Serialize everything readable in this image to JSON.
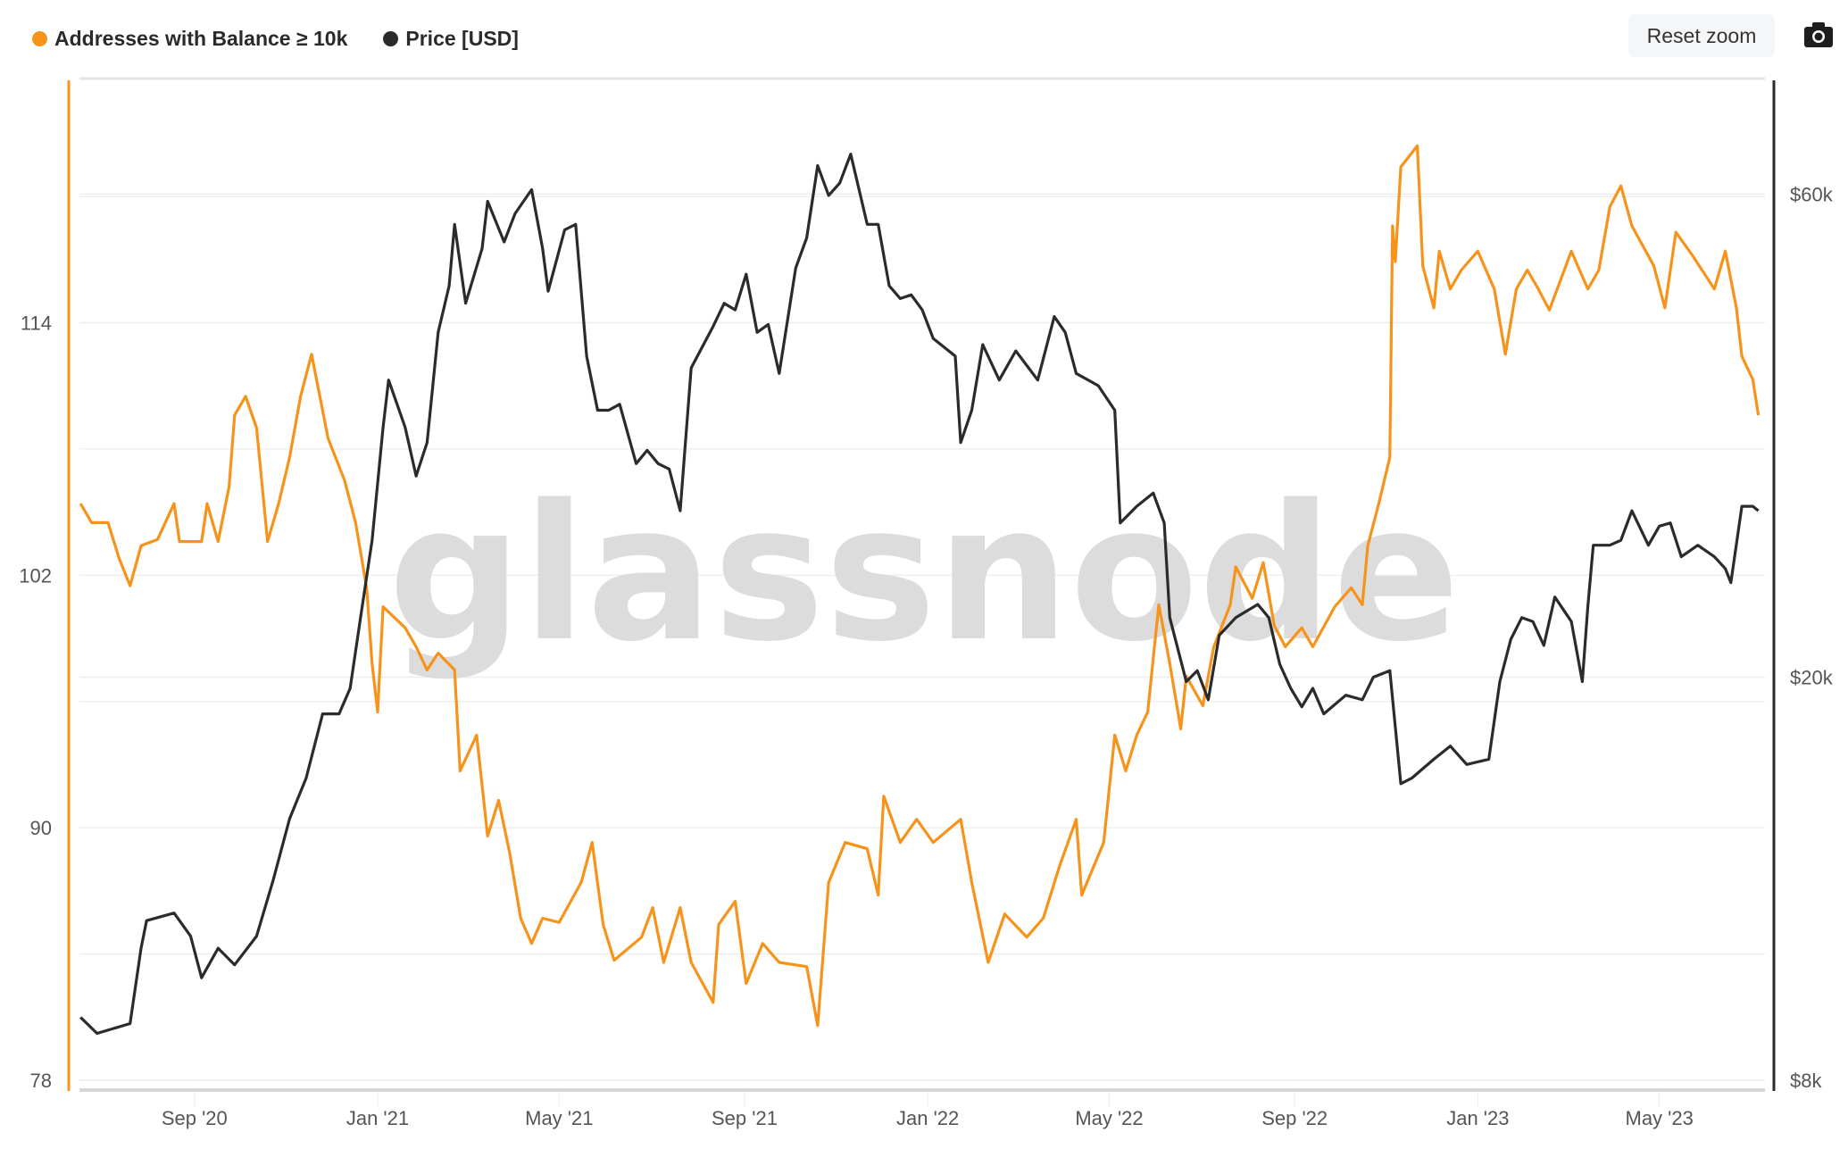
{
  "legend": [
    {
      "label": "Addresses with Balance ≥ 10k",
      "color": "#f7931a"
    },
    {
      "label": "Price [USD]",
      "color": "#2b2b2b"
    }
  ],
  "toolbar": {
    "reset_zoom_label": "Reset zoom",
    "camera_icon": "camera-icon"
  },
  "watermark": "glassnode",
  "chart_data": {
    "type": "line",
    "title": "",
    "xlabel": "",
    "xlim": [
      2020.458,
      2023.522
    ],
    "x_ticks": [
      {
        "t": 2020.667,
        "label": "Sep '20"
      },
      {
        "t": 2021.0,
        "label": "Jan '21"
      },
      {
        "t": 2021.33,
        "label": "May '21"
      },
      {
        "t": 2021.667,
        "label": "Sep '21"
      },
      {
        "t": 2022.0,
        "label": "Jan '22"
      },
      {
        "t": 2022.33,
        "label": "May '22"
      },
      {
        "t": 2022.667,
        "label": "Sep '22"
      },
      {
        "t": 2023.0,
        "label": "Jan '23"
      },
      {
        "t": 2023.33,
        "label": "May '23"
      }
    ],
    "y_left": {
      "label": "Addresses with Balance ≥ 10k",
      "lim": [
        78,
        125.6
      ],
      "ticks": [
        {
          "v": 78,
          "label": "78"
        },
        {
          "v": 90,
          "label": "90"
        },
        {
          "v": 102,
          "label": "102"
        },
        {
          "v": 114,
          "label": "114"
        }
      ],
      "grid": [
        84,
        96,
        108,
        120
      ]
    },
    "y_right": {
      "label": "Price [USD]",
      "scale": "log",
      "lim": [
        8000,
        78000
      ],
      "ticks": [
        {
          "v": 8000,
          "label": "$8k"
        },
        {
          "v": 20000,
          "label": "$20k"
        },
        {
          "v": 60000,
          "label": "$60k"
        }
      ]
    },
    "grid": true,
    "legend_position": "top-left",
    "series": [
      {
        "name": "Addresses with Balance ≥ 10k",
        "axis": "left",
        "color": "#f7931a",
        "points": [
          [
            2020.46,
            105.4
          ],
          [
            2020.48,
            104.5
          ],
          [
            2020.51,
            104.5
          ],
          [
            2020.53,
            102.8
          ],
          [
            2020.55,
            101.5
          ],
          [
            2020.57,
            103.4
          ],
          [
            2020.6,
            103.7
          ],
          [
            2020.63,
            105.4
          ],
          [
            2020.64,
            103.6
          ],
          [
            2020.68,
            103.6
          ],
          [
            2020.69,
            105.4
          ],
          [
            2020.71,
            103.6
          ],
          [
            2020.73,
            106.2
          ],
          [
            2020.74,
            109.6
          ],
          [
            2020.76,
            110.5
          ],
          [
            2020.78,
            109
          ],
          [
            2020.8,
            103.6
          ],
          [
            2020.82,
            105.4
          ],
          [
            2020.84,
            107.6
          ],
          [
            2020.86,
            110.5
          ],
          [
            2020.88,
            112.5
          ],
          [
            2020.91,
            108.5
          ],
          [
            2020.94,
            106.5
          ],
          [
            2020.96,
            104.5
          ],
          [
            2020.98,
            101.4
          ],
          [
            2020.99,
            97.8
          ],
          [
            2021.0,
            95.5
          ],
          [
            2021.01,
            100.5
          ],
          [
            2021.05,
            99.5
          ],
          [
            2021.07,
            98.6
          ],
          [
            2021.09,
            97.5
          ],
          [
            2021.11,
            98.3
          ],
          [
            2021.14,
            97.5
          ],
          [
            2021.15,
            92.7
          ],
          [
            2021.18,
            94.4
          ],
          [
            2021.2,
            89.6
          ],
          [
            2021.22,
            91.3
          ],
          [
            2021.24,
            88.8
          ],
          [
            2021.26,
            85.7
          ],
          [
            2021.28,
            84.5
          ],
          [
            2021.3,
            85.7
          ],
          [
            2021.33,
            85.5
          ],
          [
            2021.37,
            87.4
          ],
          [
            2021.39,
            89.3
          ],
          [
            2021.41,
            85.4
          ],
          [
            2021.43,
            83.7
          ],
          [
            2021.48,
            84.8
          ],
          [
            2021.5,
            86.2
          ],
          [
            2021.52,
            83.6
          ],
          [
            2021.55,
            86.2
          ],
          [
            2021.57,
            83.6
          ],
          [
            2021.61,
            81.7
          ],
          [
            2021.62,
            85.4
          ],
          [
            2021.65,
            86.5
          ],
          [
            2021.67,
            82.6
          ],
          [
            2021.7,
            84.5
          ],
          [
            2021.73,
            83.6
          ],
          [
            2021.78,
            83.4
          ],
          [
            2021.8,
            80.6
          ],
          [
            2021.82,
            87.4
          ],
          [
            2021.85,
            89.3
          ],
          [
            2021.89,
            89
          ],
          [
            2021.91,
            86.8
          ],
          [
            2021.92,
            91.5
          ],
          [
            2021.95,
            89.3
          ],
          [
            2021.98,
            90.4
          ],
          [
            2022.01,
            89.3
          ],
          [
            2022.06,
            90.4
          ],
          [
            2022.08,
            87.4
          ],
          [
            2022.11,
            83.6
          ],
          [
            2022.14,
            85.9
          ],
          [
            2022.18,
            84.8
          ],
          [
            2022.21,
            85.7
          ],
          [
            2022.24,
            88.2
          ],
          [
            2022.27,
            90.4
          ],
          [
            2022.28,
            86.8
          ],
          [
            2022.32,
            89.3
          ],
          [
            2022.34,
            94.4
          ],
          [
            2022.36,
            92.7
          ],
          [
            2022.38,
            94.4
          ],
          [
            2022.4,
            95.5
          ],
          [
            2022.42,
            100.6
          ],
          [
            2022.44,
            97.8
          ],
          [
            2022.46,
            94.7
          ],
          [
            2022.47,
            97.2
          ],
          [
            2022.5,
            95.8
          ],
          [
            2022.52,
            98.6
          ],
          [
            2022.55,
            100.6
          ],
          [
            2022.56,
            102.4
          ],
          [
            2022.59,
            100.9
          ],
          [
            2022.61,
            102.6
          ],
          [
            2022.63,
            99.6
          ],
          [
            2022.65,
            98.6
          ],
          [
            2022.68,
            99.5
          ],
          [
            2022.7,
            98.6
          ],
          [
            2022.74,
            100.5
          ],
          [
            2022.77,
            101.4
          ],
          [
            2022.79,
            100.6
          ],
          [
            2022.8,
            103.4
          ],
          [
            2022.82,
            105.4
          ],
          [
            2022.84,
            107.6
          ],
          [
            2022.845,
            118.6
          ],
          [
            2022.85,
            116.9
          ],
          [
            2022.86,
            121.4
          ],
          [
            2022.89,
            122.4
          ],
          [
            2022.9,
            116.7
          ],
          [
            2022.92,
            114.7
          ],
          [
            2022.93,
            117.4
          ],
          [
            2022.95,
            115.6
          ],
          [
            2022.97,
            116.5
          ],
          [
            2023.0,
            117.4
          ],
          [
            2023.03,
            115.6
          ],
          [
            2023.05,
            112.5
          ],
          [
            2023.07,
            115.6
          ],
          [
            2023.09,
            116.5
          ],
          [
            2023.11,
            115.6
          ],
          [
            2023.13,
            114.6
          ],
          [
            2023.17,
            117.4
          ],
          [
            2023.2,
            115.6
          ],
          [
            2023.22,
            116.5
          ],
          [
            2023.24,
            119.5
          ],
          [
            2023.26,
            120.5
          ],
          [
            2023.28,
            118.6
          ],
          [
            2023.32,
            116.7
          ],
          [
            2023.34,
            114.7
          ],
          [
            2023.36,
            118.3
          ],
          [
            2023.39,
            117.2
          ],
          [
            2023.43,
            115.6
          ],
          [
            2023.45,
            117.4
          ],
          [
            2023.47,
            114.7
          ],
          [
            2023.48,
            112.4
          ],
          [
            2023.5,
            111.3
          ],
          [
            2023.51,
            109.6
          ]
        ]
      },
      {
        "name": "Price [USD]",
        "axis": "right",
        "color": "#2b2b2b",
        "points": [
          [
            2020.46,
            9230
          ],
          [
            2020.49,
            8900
          ],
          [
            2020.55,
            9100
          ],
          [
            2020.57,
            10800
          ],
          [
            2020.58,
            11500
          ],
          [
            2020.63,
            11700
          ],
          [
            2020.66,
            11100
          ],
          [
            2020.68,
            10100
          ],
          [
            2020.71,
            10800
          ],
          [
            2020.74,
            10400
          ],
          [
            2020.78,
            11100
          ],
          [
            2020.81,
            12600
          ],
          [
            2020.84,
            14500
          ],
          [
            2020.87,
            15900
          ],
          [
            2020.9,
            18400
          ],
          [
            2020.93,
            18400
          ],
          [
            2020.95,
            19500
          ],
          [
            2020.97,
            23100
          ],
          [
            2020.99,
            27300
          ],
          [
            2021.01,
            35300
          ],
          [
            2021.02,
            39300
          ],
          [
            2021.05,
            35300
          ],
          [
            2021.07,
            31600
          ],
          [
            2021.09,
            34100
          ],
          [
            2021.11,
            43800
          ],
          [
            2021.13,
            48700
          ],
          [
            2021.14,
            56000
          ],
          [
            2021.16,
            46800
          ],
          [
            2021.19,
            53000
          ],
          [
            2021.2,
            59000
          ],
          [
            2021.23,
            53800
          ],
          [
            2021.25,
            57400
          ],
          [
            2021.28,
            60600
          ],
          [
            2021.3,
            53000
          ],
          [
            2021.31,
            48100
          ],
          [
            2021.34,
            55300
          ],
          [
            2021.36,
            56000
          ],
          [
            2021.38,
            41500
          ],
          [
            2021.4,
            36700
          ],
          [
            2021.42,
            36700
          ],
          [
            2021.44,
            37200
          ],
          [
            2021.47,
            32500
          ],
          [
            2021.49,
            33500
          ],
          [
            2021.51,
            32500
          ],
          [
            2021.53,
            32100
          ],
          [
            2021.55,
            29200
          ],
          [
            2021.57,
            40400
          ],
          [
            2021.61,
            44400
          ],
          [
            2021.63,
            46800
          ],
          [
            2021.65,
            46100
          ],
          [
            2021.67,
            50000
          ],
          [
            2021.69,
            43800
          ],
          [
            2021.71,
            44600
          ],
          [
            2021.73,
            39900
          ],
          [
            2021.76,
            50700
          ],
          [
            2021.78,
            54300
          ],
          [
            2021.8,
            64000
          ],
          [
            2021.82,
            59800
          ],
          [
            2021.84,
            61500
          ],
          [
            2021.86,
            65700
          ],
          [
            2021.89,
            56000
          ],
          [
            2021.91,
            56000
          ],
          [
            2021.93,
            48700
          ],
          [
            2021.95,
            47300
          ],
          [
            2021.97,
            47700
          ],
          [
            2021.99,
            46100
          ],
          [
            2022.01,
            43200
          ],
          [
            2022.05,
            41500
          ],
          [
            2022.06,
            34100
          ],
          [
            2022.08,
            36700
          ],
          [
            2022.1,
            42600
          ],
          [
            2022.13,
            39300
          ],
          [
            2022.16,
            42000
          ],
          [
            2022.2,
            39300
          ],
          [
            2022.23,
            45400
          ],
          [
            2022.25,
            43800
          ],
          [
            2022.27,
            39900
          ],
          [
            2022.31,
            38800
          ],
          [
            2022.34,
            36700
          ],
          [
            2022.35,
            28400
          ],
          [
            2022.38,
            29500
          ],
          [
            2022.41,
            30400
          ],
          [
            2022.43,
            28400
          ],
          [
            2022.44,
            22900
          ],
          [
            2022.47,
            19800
          ],
          [
            2022.49,
            20300
          ],
          [
            2022.51,
            19000
          ],
          [
            2022.53,
            22000
          ],
          [
            2022.56,
            22900
          ],
          [
            2022.6,
            23600
          ],
          [
            2022.62,
            22900
          ],
          [
            2022.64,
            20600
          ],
          [
            2022.66,
            19500
          ],
          [
            2022.68,
            18700
          ],
          [
            2022.7,
            19500
          ],
          [
            2022.72,
            18400
          ],
          [
            2022.76,
            19200
          ],
          [
            2022.79,
            19000
          ],
          [
            2022.81,
            20000
          ],
          [
            2022.84,
            20300
          ],
          [
            2022.86,
            15700
          ],
          [
            2022.88,
            15900
          ],
          [
            2022.92,
            16600
          ],
          [
            2022.95,
            17100
          ],
          [
            2022.98,
            16400
          ],
          [
            2023.02,
            16600
          ],
          [
            2023.04,
            19800
          ],
          [
            2023.06,
            21800
          ],
          [
            2023.08,
            22900
          ],
          [
            2023.1,
            22700
          ],
          [
            2023.12,
            21500
          ],
          [
            2023.14,
            24000
          ],
          [
            2023.17,
            22700
          ],
          [
            2023.19,
            19800
          ],
          [
            2023.2,
            23500
          ],
          [
            2023.21,
            27000
          ],
          [
            2023.24,
            27000
          ],
          [
            2023.26,
            27300
          ],
          [
            2023.28,
            29200
          ],
          [
            2023.31,
            27000
          ],
          [
            2023.33,
            28200
          ],
          [
            2023.35,
            28400
          ],
          [
            2023.37,
            26300
          ],
          [
            2023.4,
            27000
          ],
          [
            2023.43,
            26300
          ],
          [
            2023.45,
            25600
          ],
          [
            2023.46,
            24800
          ],
          [
            2023.48,
            29500
          ],
          [
            2023.5,
            29500
          ],
          [
            2023.51,
            29200
          ]
        ]
      }
    ]
  }
}
